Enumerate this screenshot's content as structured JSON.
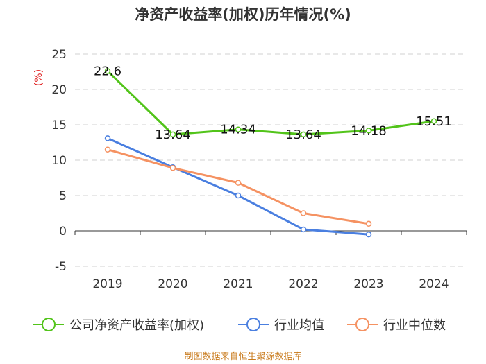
{
  "chart_data": {
    "type": "line",
    "title": "净资产收益率(加权)历年情况(%)",
    "ylabel": "(%)",
    "xlabel": "",
    "categories": [
      "2019",
      "2020",
      "2021",
      "2022",
      "2023",
      "2024"
    ],
    "ylim": [
      -5,
      25
    ],
    "yticks": [
      -5,
      0,
      5,
      10,
      15,
      20,
      25
    ],
    "grid": true,
    "legend_position": "bottom",
    "series": [
      {
        "name": "公司净资产收益率(加权)",
        "color": "#52c41a",
        "values": [
          22.6,
          13.64,
          14.34,
          13.64,
          14.18,
          15.51
        ],
        "labels": [
          "22.6",
          "13.64",
          "14.34",
          "13.64",
          "14.18",
          "15.51"
        ]
      },
      {
        "name": "行业均值",
        "color": "#4a7fe0",
        "values": [
          13.1,
          9.0,
          5.0,
          0.2,
          -0.5,
          null
        ]
      },
      {
        "name": "行业中位数",
        "color": "#f59262",
        "values": [
          11.5,
          8.9,
          6.8,
          2.5,
          1.0,
          null
        ]
      }
    ],
    "source": "制图数据来自恒生聚源数据库"
  }
}
